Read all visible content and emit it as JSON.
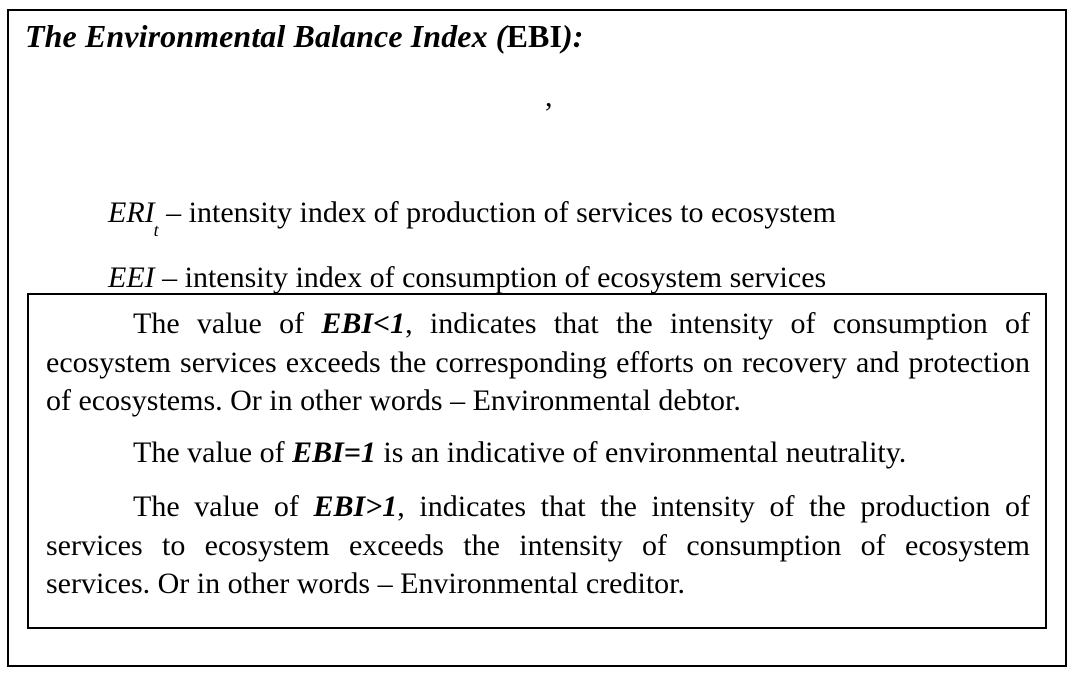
{
  "header": {
    "title_part1": "The Environmental Balance Index (",
    "title_abbr": "EBI",
    "title_part2": "):",
    "formula_comma": ","
  },
  "definitions": [
    {
      "symbol": "ERI",
      "subscript": "t",
      "text": " – intensity index of production of services to ecosystem"
    },
    {
      "symbol": "EEI",
      "subscript": "",
      "text": "  – intensity index of consumption of ecosystem services"
    }
  ],
  "explanations": [
    {
      "prefix": "The value of ",
      "term": "EBI<1",
      "text": ", indicates that the intensity of consumption of ecosystem services exceeds the corresponding efforts on recovery and protection of ecosystems. Or in other words – Environmental debtor."
    },
    {
      "prefix": "The value of ",
      "term": "EBI=1",
      "text": " is an indicative of environmental neutrality."
    },
    {
      "prefix": "The value of ",
      "term": "EBI>1",
      "text": ", indicates that the intensity of the production of services to ecosystem exceeds the intensity of consumption of ecosystem services. Or in other words – Environmental creditor."
    }
  ]
}
